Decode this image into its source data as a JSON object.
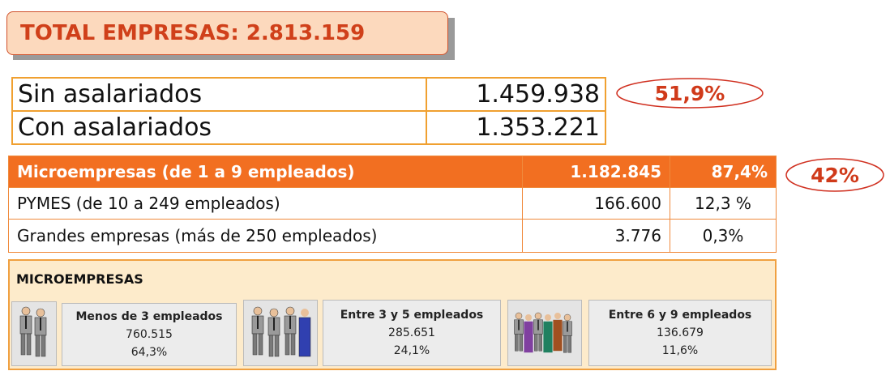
{
  "header": {
    "title": "TOTAL EMPRESAS: 2.813.159"
  },
  "summary": {
    "rows": [
      [
        "Sin asalariados",
        "1.459.938"
      ],
      [
        "Con asalariados",
        "1.353.221"
      ]
    ],
    "note": "51,9%"
  },
  "breakdown": {
    "rows": [
      [
        "Microempresas (de 1 a 9 empleados)",
        "1.182.845",
        "87,4%"
      ],
      [
        "PYMES (de 10 a 249 empleados)",
        "166.600",
        "12,3 %"
      ],
      [
        "Grandes empresas (más de 250 empleados)",
        "3.776",
        "0,3%"
      ]
    ],
    "note": "42%"
  },
  "micro": {
    "title": "MICROEMPRESAS",
    "groups": [
      {
        "label": "Menos de 3 empleados",
        "count": "760.515",
        "share": "64,3%"
      },
      {
        "label": "Entre 3 y 5 empleados",
        "count": "285.651",
        "share": "24,1%"
      },
      {
        "label": "Entre 6 y 9 empleados",
        "count": "136.679",
        "share": "11,6%"
      }
    ]
  }
}
